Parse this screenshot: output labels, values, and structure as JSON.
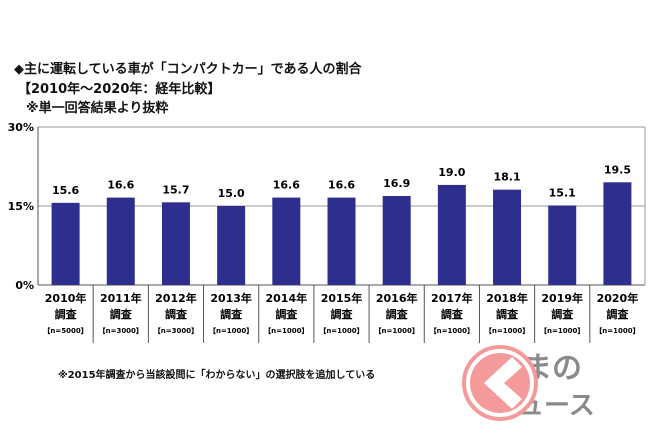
{
  "title": "◆主に運転している車が「コンパクトカー」である人の割合",
  "subtitle1": "【2010年～2020年：経年比較】",
  "subtitle2": "※単一回答結果より抜粋",
  "footnote": "※2015年調査から当該設問に「わからない」の選択肢を追加している",
  "logo": {
    "line1": "るまの",
    "line2": "ニュース"
  },
  "colors": {
    "bar": "#2e2e8f",
    "logo": "#f59a9a",
    "logo_text": "#8a8a8a"
  },
  "chart_data": {
    "type": "bar",
    "title": "主に運転している車が「コンパクトカー」である人の割合",
    "categories": [
      "2010年",
      "2011年",
      "2012年",
      "2013年",
      "2014年",
      "2015年",
      "2016年",
      "2017年",
      "2018年",
      "2019年",
      "2020年"
    ],
    "category_sub": "調査",
    "sample_sizes": [
      "【n=5000】",
      "【n=3000】",
      "【n=3000】",
      "【n=1000】",
      "【n=1000】",
      "【n=1000】",
      "【n=1000】",
      "【n=1000】",
      "【n=1000】",
      "【n=1000】",
      "【n=1000】"
    ],
    "values": [
      15.6,
      16.6,
      15.7,
      15.0,
      16.6,
      16.6,
      16.9,
      19.0,
      18.1,
      15.1,
      19.5
    ],
    "ylim": [
      0,
      30
    ],
    "yticks": [
      "0%",
      "15%",
      "30%"
    ],
    "ytick_values": [
      0,
      15,
      30
    ],
    "xlabel": "",
    "ylabel": ""
  }
}
